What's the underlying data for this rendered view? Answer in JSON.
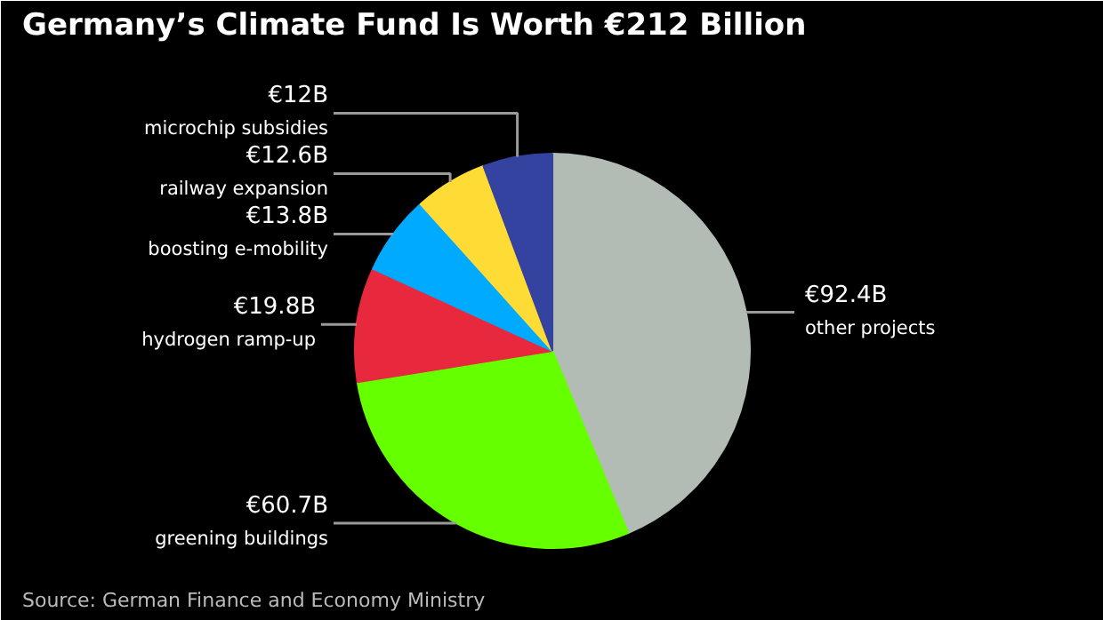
{
  "chart_data": {
    "type": "pie",
    "title": "Germany’s Climate Fund Is Worth €212 Billion",
    "categories": [
      "other projects",
      "greening buildings",
      "hydrogen ramp-up",
      "boosting e-mobility",
      "railway expansion",
      "microchip subsidies"
    ],
    "values": [
      92.4,
      60.7,
      19.8,
      13.8,
      12.6,
      12
    ],
    "value_labels": [
      "€92.4B",
      "€60.7B",
      "€19.8B",
      "€13.8B",
      "€12.6B",
      "€12B"
    ],
    "colors": [
      "#b2bcb4",
      "#66ff00",
      "#e8283c",
      "#00aaff",
      "#ffdc35",
      "#3442a0"
    ],
    "annotations": [
      "Source: German Finance and Economy Ministry"
    ]
  }
}
